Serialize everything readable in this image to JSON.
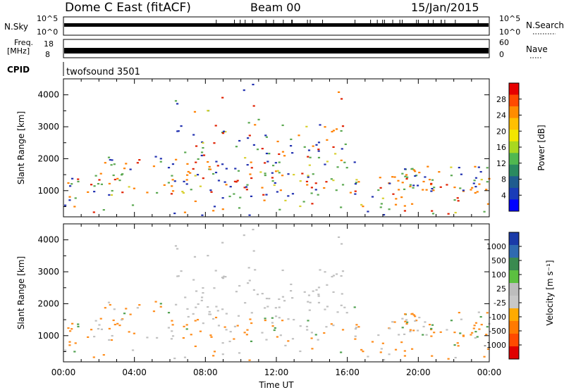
{
  "header": {
    "title": "Dome C East (fitACF)",
    "beam": "Beam 00",
    "date": "15/Jan/2015"
  },
  "panels": {
    "nsky": {
      "left_label": "N.Sky",
      "right_label": "N.Search",
      "top_tick": "10^5",
      "bottom_tick": "10^0"
    },
    "freq": {
      "left_label_1": "Freq.",
      "left_label_2": "[MHz]",
      "top_tick": "18",
      "bottom_tick": "8",
      "right_top_tick": "60",
      "right_bottom_tick": "0",
      "right_label": "Nave"
    },
    "cpid": {
      "left_label": "CPID",
      "program": "twofsound 3501"
    }
  },
  "chart_data": [
    {
      "type": "heatmap",
      "name": "power",
      "ylabel": "Slant Range [km]",
      "yticks": [
        1000,
        2000,
        3000,
        4000
      ],
      "ylim": [
        180,
        4500
      ],
      "xlim": [
        0,
        24
      ],
      "colorbar": {
        "label": "Power [dB]",
        "ticks": [
          "28",
          "24",
          "20",
          "16",
          "12",
          "8",
          "4"
        ],
        "colors": [
          "#e60000",
          "#ff4a00",
          "#ff8c00",
          "#ffc000",
          "#f2e600",
          "#a8d820",
          "#50b850",
          "#2a8a60",
          "#1f5c8f",
          "#1a3cb8",
          "#0000ff"
        ]
      }
    },
    {
      "type": "heatmap",
      "name": "velocity",
      "ylabel": "Slant Range [km]",
      "yticks": [
        1000,
        2000,
        3000,
        4000
      ],
      "ylim": [
        180,
        4500
      ],
      "xlim": [
        0,
        24
      ],
      "xlabel": "Time UT",
      "xticks": [
        "00:00",
        "04:00",
        "08:00",
        "12:00",
        "16:00",
        "20:00",
        "00:00"
      ],
      "colorbar": {
        "label": "Velocity [m s⁻¹]",
        "ticks": [
          "1000",
          "500",
          "100",
          "25",
          "-25",
          "-100",
          "-500",
          "-1000"
        ],
        "colors": [
          "#1a3aa8",
          "#2f6ab0",
          "#3a8a50",
          "#5cc040",
          "#bdbdbd",
          "#c8c8c8",
          "#ffaa00",
          "#ff7a00",
          "#ff4a00",
          "#e00000"
        ]
      }
    }
  ],
  "colors": {
    "axis": "#000000",
    "power_blue": "#2030b0",
    "power_green": "#5aa850",
    "power_yellow": "#d8d030",
    "power_orange": "#ff8000",
    "power_red": "#e02000",
    "vel_gray": "#c0c0c0",
    "vel_orange": "#ff8c1a",
    "vel_green": "#50a050"
  }
}
